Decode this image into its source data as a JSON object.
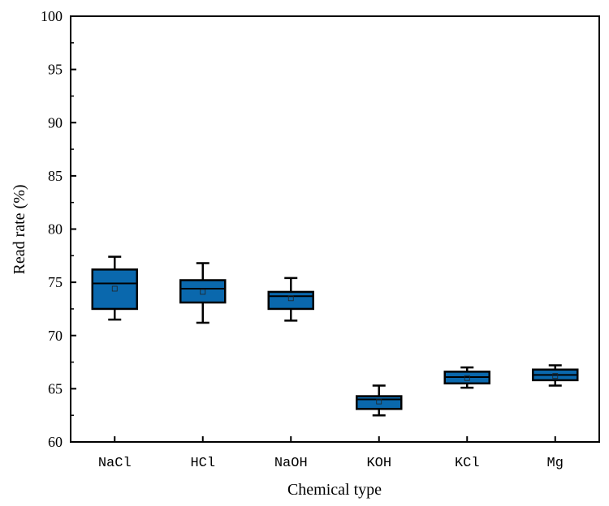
{
  "chart_data": {
    "type": "boxplot",
    "xlabel": "Chemical type",
    "ylabel": "Read rate (%)",
    "ylim": [
      60,
      100
    ],
    "yticks": [
      "60",
      "65",
      "70",
      "75",
      "80",
      "85",
      "90",
      "95",
      "100"
    ],
    "box_color": "#0a68ad",
    "categories": [
      "NaCl",
      "HCl",
      "NaOH",
      "KOH",
      "KCl",
      "Mg"
    ],
    "boxes": [
      {
        "name": "NaCl",
        "min": 71.5,
        "q1": 72.5,
        "median": 74.9,
        "mean": 74.4,
        "q3": 76.2,
        "max": 77.4
      },
      {
        "name": "HCl",
        "min": 71.2,
        "q1": 73.1,
        "median": 74.4,
        "mean": 74.1,
        "q3": 75.2,
        "max": 76.8
      },
      {
        "name": "NaOH",
        "min": 71.4,
        "q1": 72.5,
        "median": 73.7,
        "mean": 73.5,
        "q3": 74.1,
        "max": 75.4
      },
      {
        "name": "KOH",
        "min": 62.5,
        "q1": 63.1,
        "median": 64.0,
        "mean": 63.8,
        "q3": 64.3,
        "max": 65.3
      },
      {
        "name": "KCl",
        "min": 65.1,
        "q1": 65.5,
        "median": 66.1,
        "mean": 66.0,
        "q3": 66.6,
        "max": 67.0
      },
      {
        "name": "Mg",
        "min": 65.3,
        "q1": 65.8,
        "median": 66.3,
        "mean": 66.2,
        "q3": 66.8,
        "max": 67.2
      }
    ]
  }
}
